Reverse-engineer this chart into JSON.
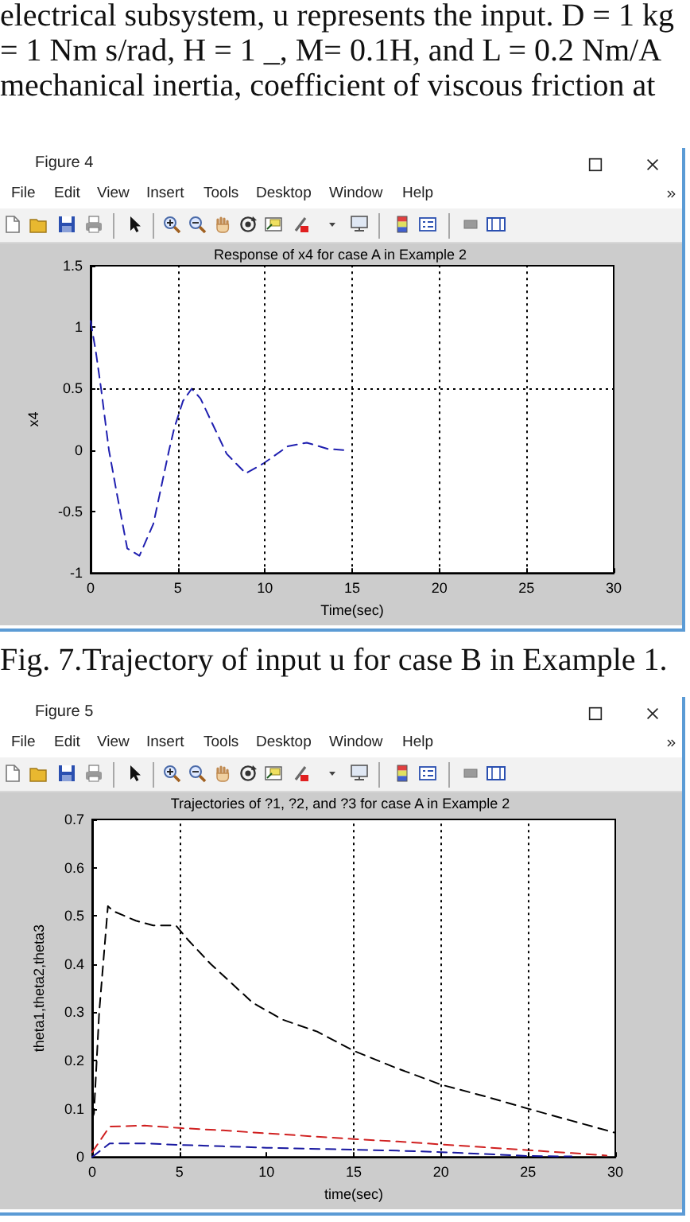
{
  "chart_data": [
    {
      "type": "line",
      "title": "Response of x4 for case A in Example 2",
      "xlabel": "Time(sec)",
      "ylabel": "x4",
      "x": [
        0,
        0.3,
        0.6,
        1.05,
        1.5,
        2.1,
        2.8,
        3.6,
        4.2,
        4.5,
        4.8,
        5.3,
        5.8,
        6.3,
        6.9,
        7.8,
        8.9,
        9.9,
        11.3,
        12.4,
        13.6,
        14.5
      ],
      "series": [
        {
          "color": "#2020b0",
          "line_style": "dashed",
          "values": [
            1.05,
            0.8,
            0.5,
            0,
            -0.35,
            -0.8,
            -0.86,
            -0.6,
            -0.2,
            0,
            0.18,
            0.4,
            0.5,
            0.42,
            0.24,
            -0.03,
            -0.19,
            -0.11,
            0.03,
            0.06,
            0.01,
            0
          ]
        }
      ],
      "xlim": [
        0,
        30
      ],
      "ylim": [
        -1,
        1.5
      ],
      "xticks": [
        0,
        5,
        10,
        15,
        20,
        25,
        30
      ],
      "yticks": [
        -1,
        -0.5,
        0,
        0.5,
        1,
        1.5
      ],
      "ref_lines": [
        {
          "axis": "x",
          "value": 5,
          "color": "#000000",
          "line_style": "dotted"
        },
        {
          "axis": "x",
          "value": 10,
          "color": "#000000",
          "line_style": "dotted"
        },
        {
          "axis": "x",
          "value": 15,
          "color": "#000000",
          "line_style": "dotted"
        },
        {
          "axis": "x",
          "value": 20,
          "color": "#000000",
          "line_style": "dotted"
        },
        {
          "axis": "x",
          "value": 25,
          "color": "#000000",
          "line_style": "dotted"
        },
        {
          "axis": "y",
          "value": 0.5,
          "color": "#000000",
          "line_style": "dotted"
        }
      ],
      "marker": "none",
      "annotations": [
        "electrical subsystem, u represents the input. D = 1 kg",
        "= 1 Nm s/rad, H = 1 _, M= 0.1H, and L = 0.2 Nm/A",
        "mechanical inertia, coefficient of viscous friction at",
        "Figure 4",
        "File",
        "Edit",
        "View",
        "Insert",
        "Tools",
        "Desktop",
        "Window",
        "Help",
        "Fig. 7.Trajectory of input u for case B in Example 1."
      ]
    },
    {
      "type": "line",
      "title": "Trajectories of ?1, ?2, and ?3 for case A in Example 2",
      "xlabel": "time(sec)",
      "ylabel": "theta1,theta2,theta3",
      "series": [
        {
          "color": "#000000",
          "line_style": "dashed",
          "x": [
            0,
            0.1,
            0.4,
            0.9,
            1.2,
            2.5,
            3.5,
            4.8,
            5.5,
            6.8,
            8,
            9.2,
            10.9,
            12.9,
            15,
            17.4,
            20,
            22.6,
            25,
            27.4,
            30
          ],
          "values": [
            0.08,
            0.09,
            0.3,
            0.52,
            0.51,
            0.49,
            0.48,
            0.48,
            0.45,
            0.4,
            0.36,
            0.32,
            0.285,
            0.26,
            0.22,
            0.185,
            0.15,
            0.125,
            0.1,
            0.076,
            0.05
          ]
        },
        {
          "color": "#d02020",
          "line_style": "dashed",
          "x": [
            0,
            1,
            3,
            5,
            7.5,
            10,
            12.5,
            15,
            17.5,
            20,
            22.5,
            25,
            27.5,
            29.5
          ],
          "values": [
            0.01,
            0.063,
            0.065,
            0.06,
            0.055,
            0.049,
            0.043,
            0.037,
            0.032,
            0.026,
            0.02,
            0.014,
            0.008,
            0.003
          ]
        },
        {
          "color": "#1818a0",
          "line_style": "dashed",
          "x": [
            0,
            1,
            3,
            5,
            7.5,
            10,
            12.5,
            15,
            17.5,
            20,
            22.5,
            25,
            27.5
          ],
          "values": [
            0,
            0.028,
            0.028,
            0.025,
            0.022,
            0.019,
            0.017,
            0.015,
            0.013,
            0.01,
            0.006,
            0.002,
            0.001
          ]
        }
      ],
      "xlim": [
        0,
        30
      ],
      "ylim": [
        0,
        0.7
      ],
      "xticks": [
        0,
        5,
        10,
        15,
        20,
        25,
        30
      ],
      "yticks": [
        0,
        0.1,
        0.2,
        0.3,
        0.4,
        0.5,
        0.6,
        0.7
      ],
      "ref_lines": [
        {
          "axis": "x",
          "value": 5,
          "color": "#000000",
          "line_style": "dotted"
        },
        {
          "axis": "x",
          "value": 15,
          "color": "#000000",
          "line_style": "dotted"
        },
        {
          "axis": "x",
          "value": 20,
          "color": "#000000",
          "line_style": "dotted"
        },
        {
          "axis": "x",
          "value": 25,
          "color": "#000000",
          "line_style": "dotted"
        }
      ],
      "marker": "none",
      "annotations": [
        "Figure 5",
        "File",
        "Edit",
        "View",
        "Insert",
        "Tools",
        "Desktop",
        "Window",
        "Help"
      ]
    }
  ]
}
